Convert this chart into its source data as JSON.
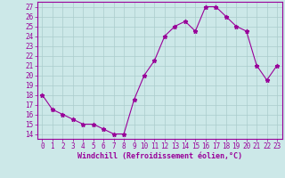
{
  "x": [
    0,
    1,
    2,
    3,
    4,
    5,
    6,
    7,
    8,
    9,
    10,
    11,
    12,
    13,
    14,
    15,
    16,
    17,
    18,
    19,
    20,
    21,
    22,
    23
  ],
  "y": [
    18.0,
    16.5,
    16.0,
    15.5,
    15.0,
    15.0,
    14.5,
    14.0,
    14.0,
    17.5,
    20.0,
    21.5,
    24.0,
    25.0,
    25.5,
    24.5,
    27.0,
    27.0,
    26.0,
    25.0,
    24.5,
    21.0,
    19.5,
    21.0
  ],
  "line_color": "#990099",
  "marker": "*",
  "bg_color": "#cce8e8",
  "grid_color": "#aacccc",
  "xlabel": "Windchill (Refroidissement éolien,°C)",
  "xlim": [
    -0.5,
    23.5
  ],
  "ylim": [
    13.5,
    27.5
  ],
  "yticks": [
    14,
    15,
    16,
    17,
    18,
    19,
    20,
    21,
    22,
    23,
    24,
    25,
    26,
    27
  ],
  "xticks": [
    0,
    1,
    2,
    3,
    4,
    5,
    6,
    7,
    8,
    9,
    10,
    11,
    12,
    13,
    14,
    15,
    16,
    17,
    18,
    19,
    20,
    21,
    22,
    23
  ],
  "tick_color": "#990099",
  "label_color": "#990099",
  "spine_color": "#990099",
  "tick_fontsize": 5.5,
  "xlabel_fontsize": 6.0
}
